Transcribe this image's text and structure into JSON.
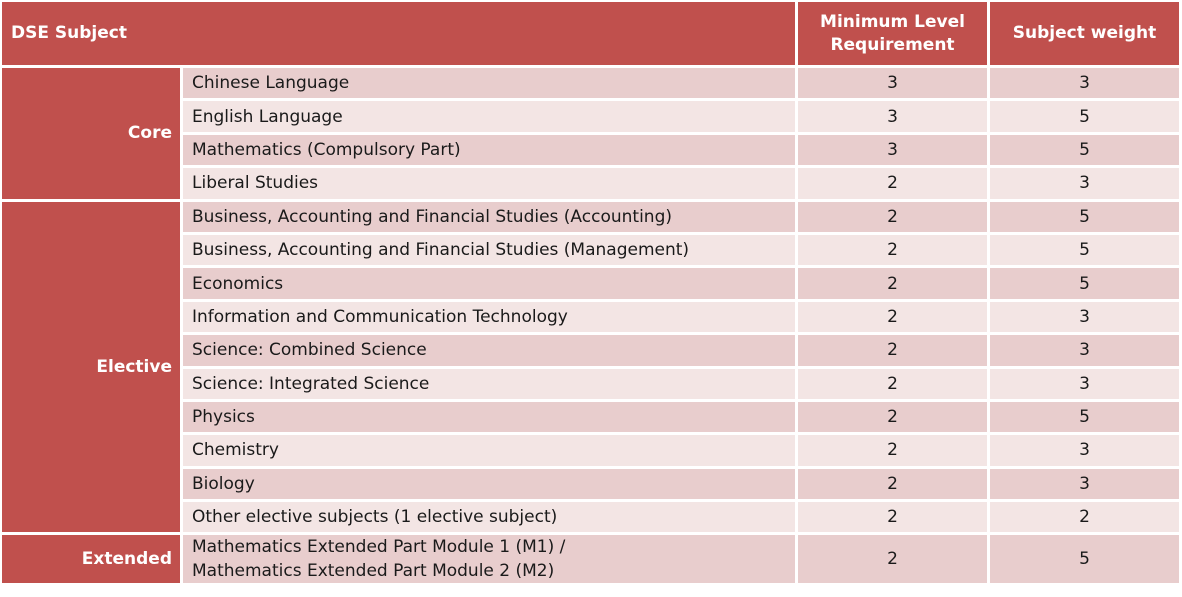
{
  "header": {
    "subject": "DSE Subject",
    "min_level": "Minimum Level Requirement",
    "weight": "Subject weight"
  },
  "groups": [
    {
      "category": "Core",
      "rows": [
        {
          "subject": "Chinese Language",
          "min_level": "3",
          "weight": "3"
        },
        {
          "subject": "English Language",
          "min_level": "3",
          "weight": "5"
        },
        {
          "subject": "Mathematics (Compulsory Part)",
          "min_level": "3",
          "weight": "5"
        },
        {
          "subject": "Liberal Studies",
          "min_level": "2",
          "weight": "3"
        }
      ]
    },
    {
      "category": "Elective",
      "rows": [
        {
          "subject": "Business, Accounting and Financial Studies (Accounting)",
          "min_level": "2",
          "weight": "5"
        },
        {
          "subject": "Business, Accounting and Financial Studies (Management)",
          "min_level": "2",
          "weight": "5"
        },
        {
          "subject": "Economics",
          "min_level": "2",
          "weight": "5"
        },
        {
          "subject": "Information and Communication Technology",
          "min_level": "2",
          "weight": "3"
        },
        {
          "subject": "Science: Combined Science",
          "min_level": "2",
          "weight": "3"
        },
        {
          "subject": "Science: Integrated Science",
          "min_level": "2",
          "weight": "3"
        },
        {
          "subject": "Physics",
          "min_level": "2",
          "weight": "5"
        },
        {
          "subject": "Chemistry",
          "min_level": "2",
          "weight": "3"
        },
        {
          "subject": "Biology",
          "min_level": "2",
          "weight": "3"
        },
        {
          "subject": "Other elective subjects (1 elective subject)",
          "min_level": "2",
          "weight": "2"
        }
      ]
    },
    {
      "category": "Extended",
      "rows": [
        {
          "subject_line1": "Mathematics Extended Part Module 1 (M1) /",
          "subject_line2": "Mathematics Extended Part Module 2 (M2)",
          "min_level": "2",
          "weight": "5"
        }
      ]
    }
  ],
  "colors": {
    "header_bg": "#c0504d",
    "row_dark": "#e8cdcd",
    "row_light": "#f3e5e4"
  }
}
